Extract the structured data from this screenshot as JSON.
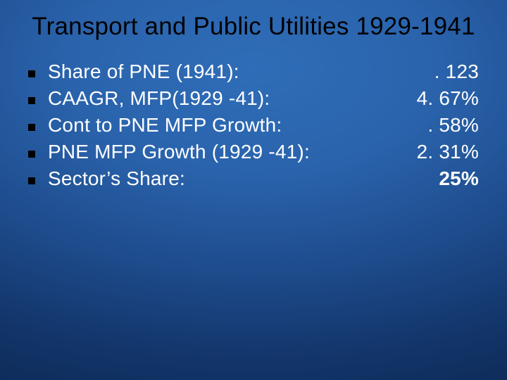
{
  "slide": {
    "title": "Transport and Public Utilities 1929-1941",
    "title_fontsize": 35,
    "title_color": "#000000",
    "body_fontsize": 28,
    "body_color": "#ffffff",
    "bullet_color": "#000000",
    "background_gradient": [
      "#2f6db8",
      "#2a63ac",
      "#1d4a8a",
      "#123468",
      "#0b2752"
    ],
    "rows": [
      {
        "label": "Share of PNE (1941):",
        "value": ". 123",
        "bold": false
      },
      {
        "label": "CAAGR, MFP(1929 -41):",
        "value": "4. 67%",
        "bold": false
      },
      {
        "label": "Cont to PNE MFP Growth:",
        "value": ". 58%",
        "bold": false
      },
      {
        "label": "PNE MFP Growth (1929 -41):",
        "value": "2. 31%",
        "bold": false
      },
      {
        "label": "Sector’s Share:",
        "value": "25%",
        "bold": true
      }
    ]
  }
}
